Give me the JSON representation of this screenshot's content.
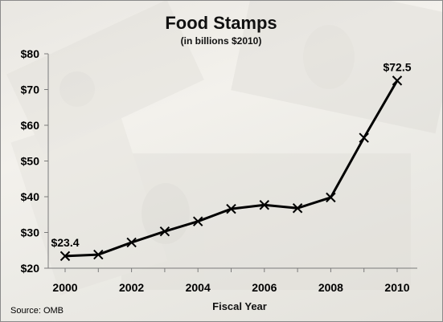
{
  "source": "Source: OMB",
  "chart_data": {
    "type": "line",
    "title": "Food Stamps",
    "subtitle": "(in billions $2010)",
    "xlabel": "Fiscal Year",
    "ylabel": "",
    "x": [
      2000,
      2001,
      2002,
      2003,
      2004,
      2005,
      2006,
      2007,
      2008,
      2009,
      2010
    ],
    "series": [
      {
        "values": [
          23.4,
          23.8,
          27.2,
          30.3,
          33.1,
          36.6,
          37.7,
          36.8,
          39.8,
          56.5,
          72.5
        ]
      }
    ],
    "x_ticks": [
      2000,
      2002,
      2004,
      2006,
      2008,
      2010
    ],
    "x_tick_labels": [
      "2000",
      "2002",
      "2004",
      "2006",
      "2008",
      "2010"
    ],
    "y_ticks": [
      20,
      30,
      40,
      50,
      60,
      70,
      80
    ],
    "y_tick_labels": [
      "$20",
      "$30",
      "$40",
      "$50",
      "$60",
      "$70",
      "$80"
    ],
    "xlim": [
      2000,
      2010
    ],
    "ylim": [
      20,
      80
    ],
    "annotations": [
      {
        "x": 2000,
        "y": 23.4,
        "text": "$23.4"
      },
      {
        "x": 2010,
        "y": 72.5,
        "text": "$72.5"
      }
    ],
    "marker": "x",
    "line_color": "#000000",
    "grid": false,
    "legend": "none"
  }
}
